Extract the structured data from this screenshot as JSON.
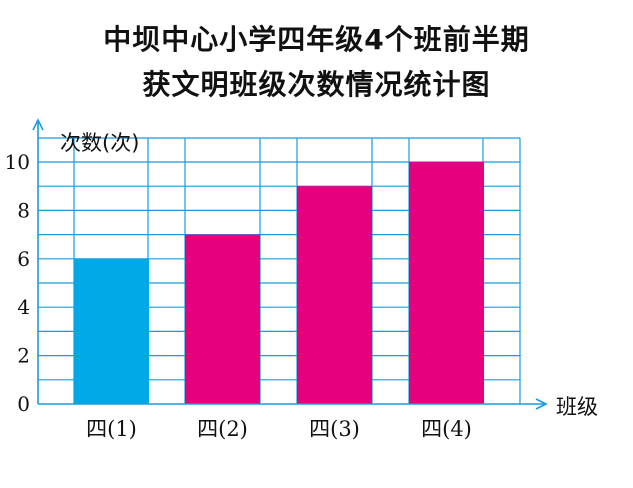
{
  "chart_data": {
    "type": "bar",
    "title": [
      "中坝中心小学四年级4个班前半期",
      "获文明班级次数情况统计图"
    ],
    "ylabel": "次数(次)",
    "xlabel": "班级",
    "categories": [
      "四(1)",
      "四(2)",
      "四(3)",
      "四(4)"
    ],
    "values": [
      6,
      7,
      9,
      10
    ],
    "yticks": [
      0,
      2,
      4,
      6,
      8,
      10
    ],
    "ylim": [
      0,
      10
    ],
    "grid": true,
    "colors": {
      "grid": "#1a9be0",
      "axis": "#1a9be0",
      "bar_first": "#00a8e6",
      "bar_other": "#e6007e"
    }
  }
}
